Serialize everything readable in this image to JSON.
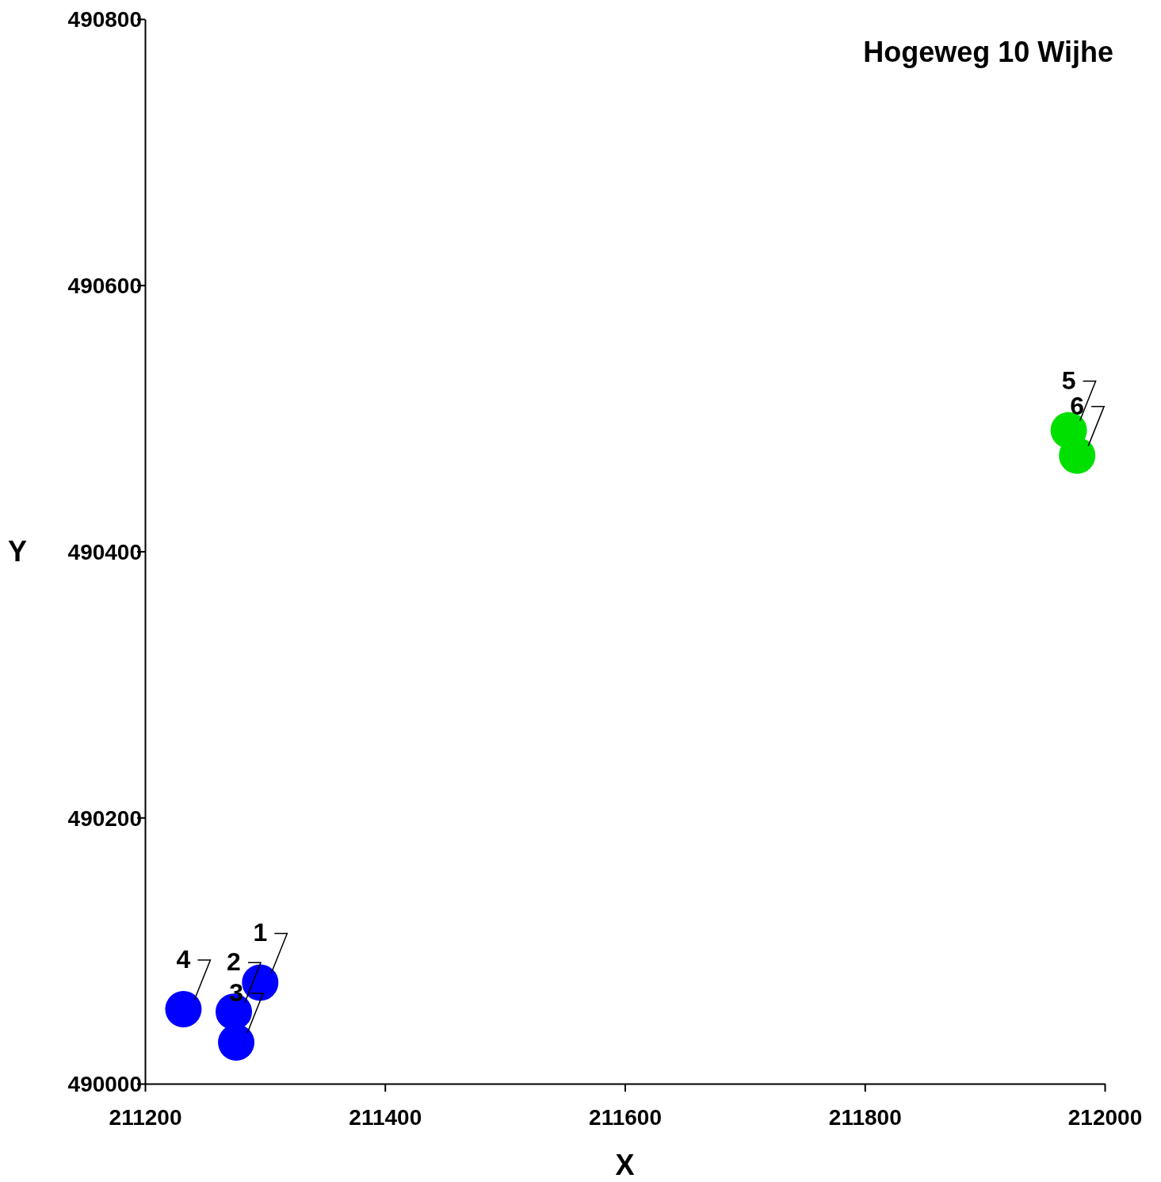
{
  "chart_data": {
    "type": "scatter",
    "title": "Hogeweg 10 Wijhe",
    "xlabel": "X",
    "ylabel": "Y",
    "xlim": [
      211200,
      212000
    ],
    "xticks": [
      211200,
      211400,
      211600,
      211800,
      212000
    ],
    "ylim": [
      490000,
      490800
    ],
    "yticks": [
      490000,
      490200,
      490400,
      490600,
      490800
    ],
    "marker": "circle",
    "series": [
      {
        "color": "#0000ff",
        "x": [
          211296,
          211274,
          211276,
          211232
        ],
        "values": [
          490076,
          490054,
          490031,
          490056
        ]
      },
      {
        "color": "#00e000",
        "x": [
          211970,
          211977
        ],
        "values": [
          490491,
          490472
        ]
      }
    ],
    "annotations": [
      {
        "text": "1",
        "x": 211296,
        "y": 490076
      },
      {
        "text": "2",
        "x": 211274,
        "y": 490054
      },
      {
        "text": "3",
        "x": 211276,
        "y": 490031
      },
      {
        "text": "4",
        "x": 211232,
        "y": 490056
      },
      {
        "text": "5",
        "x": 211970,
        "y": 490491
      },
      {
        "text": "6",
        "x": 211977,
        "y": 490472
      }
    ]
  }
}
